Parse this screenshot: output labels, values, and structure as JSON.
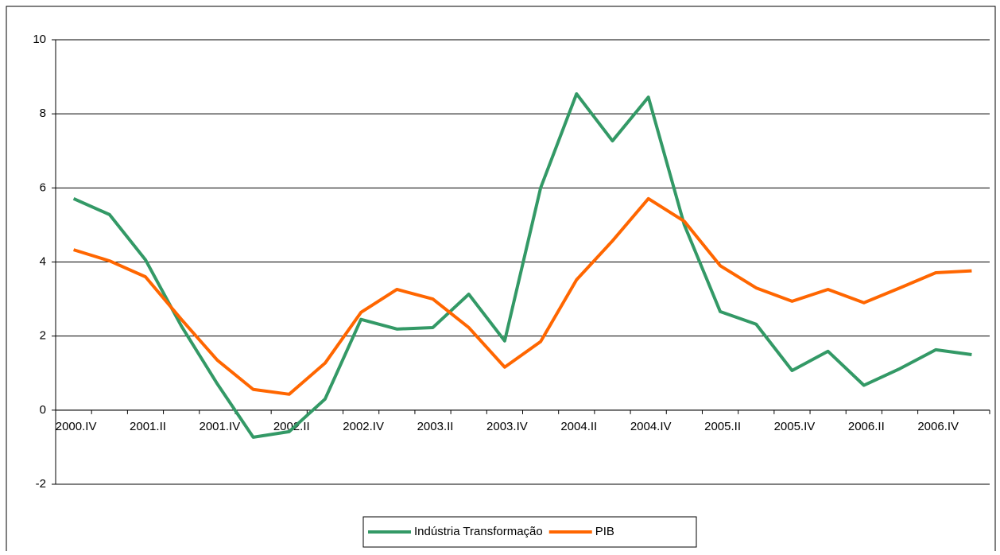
{
  "chart_data": {
    "type": "line",
    "categories": [
      "2000.IV",
      null,
      "2001.II",
      null,
      "2001.IV",
      null,
      "2002.II",
      null,
      "2002.IV",
      null,
      "2003.II",
      null,
      "2003.IV",
      null,
      "2004.II",
      null,
      "2004.IV",
      null,
      "2005.II",
      null,
      "2005.IV",
      null,
      "2006.II",
      null,
      "2006.IV",
      null
    ],
    "series": [
      {
        "name": "Indústria Transformação",
        "color": "#339966",
        "values": [
          5.71,
          5.28,
          4.06,
          2.27,
          0.71,
          -0.73,
          -0.58,
          0.3,
          2.45,
          2.19,
          2.23,
          3.13,
          1.87,
          6.0,
          8.54,
          7.27,
          8.45,
          5.0,
          2.66,
          2.32,
          1.07,
          1.59,
          0.67,
          1.12,
          1.63,
          1.5
        ]
      },
      {
        "name": "PIB",
        "color": "#ff6600",
        "values": [
          4.33,
          4.03,
          3.6,
          2.45,
          1.35,
          0.56,
          0.43,
          1.27,
          2.64,
          3.26,
          3.0,
          2.23,
          1.16,
          1.85,
          3.52,
          4.57,
          5.71,
          5.1,
          3.9,
          3.3,
          2.94,
          3.26,
          2.9,
          3.3,
          3.71,
          3.76
        ]
      }
    ],
    "ylim": [
      -2,
      10
    ],
    "yticks": [
      -2,
      0,
      2,
      4,
      6,
      8,
      10
    ],
    "grid": true,
    "legend": "bottom"
  }
}
